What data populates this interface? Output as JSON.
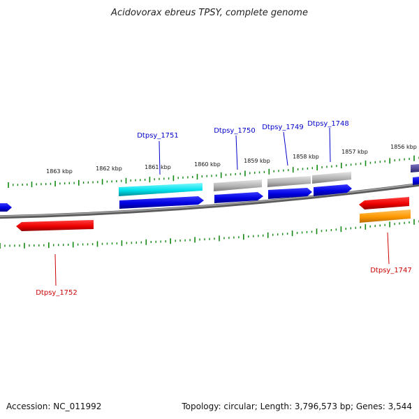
{
  "title": "Acidovorax ebreus TPSY, complete genome",
  "footer": {
    "accession": "Accession: NC_011992",
    "summary": "Topology: circular; Length: 3,796,573 bp; Genes: 3,544"
  },
  "ticks": [
    "1863 kbp",
    "1862 kbp",
    "1861 kbp",
    "1860 kbp",
    "1859 kbp",
    "1858 kbp",
    "1857 kbp",
    "1856 kbp"
  ],
  "labels": {
    "blue": [
      "Dtpsy_1751",
      "Dtpsy_1750",
      "Dtpsy_1749",
      "Dtpsy_1748"
    ],
    "red": [
      "Dtpsy_1752",
      "Dtpsy_1747"
    ]
  },
  "colors": {
    "backbone": "#808080",
    "cds_forward": "#0000ee",
    "cds_reverse": "#ee0000",
    "feature_cyan": "#00e5ee",
    "feature_gray": "#b0b0b0",
    "feature_orange": "#ff9900",
    "feature_purple": "#4a3f8f",
    "tick": "#118811",
    "label_blue": "#0000cc",
    "label_red": "#cc0000"
  }
}
